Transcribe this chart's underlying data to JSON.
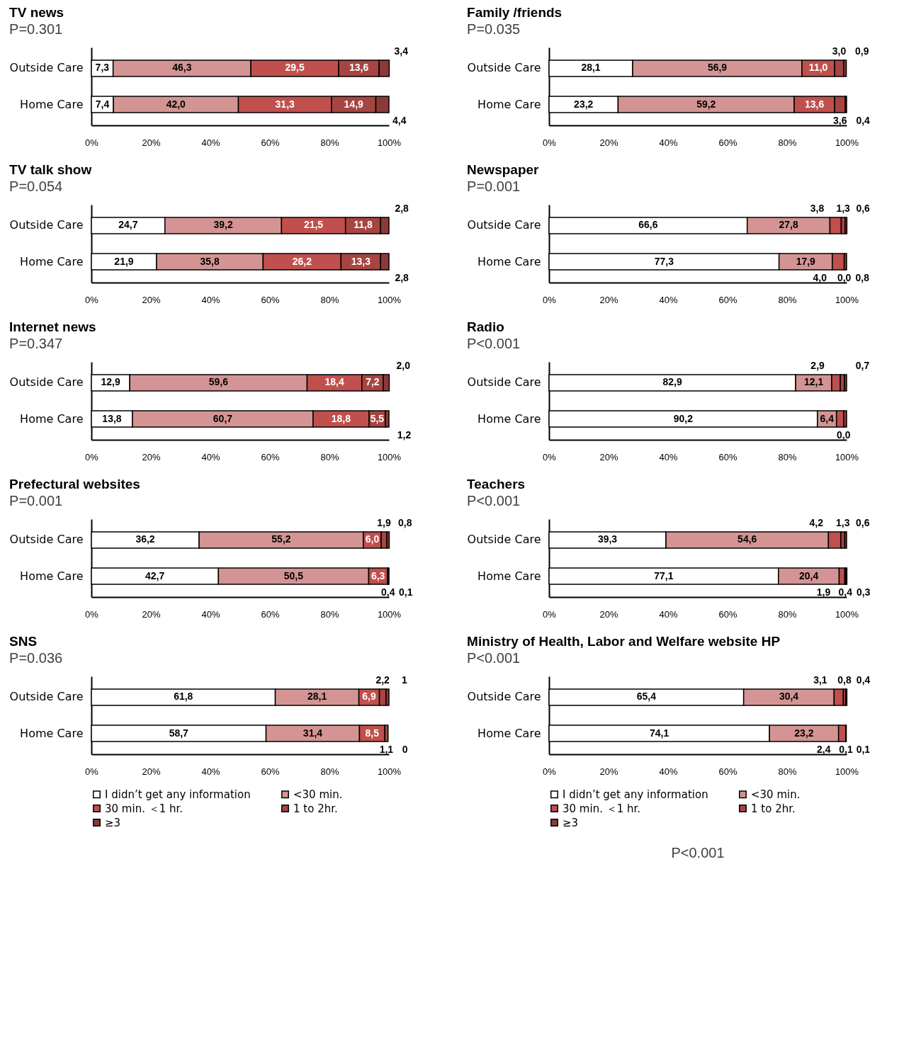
{
  "chart_data": [
    {
      "type": "bar",
      "orientation": "horizontal",
      "stacked": true,
      "title": "TV news",
      "subtitle": "P=0.301",
      "categories": [
        "Outside Care",
        "Home Care"
      ],
      "xlim": [
        0,
        100
      ],
      "xticks": [
        {
          "value": 0,
          "label": "0%"
        },
        {
          "value": 20,
          "label": "20%"
        },
        {
          "value": 40,
          "label": "40%"
        },
        {
          "value": 60,
          "label": "60%"
        },
        {
          "value": 80,
          "label": "80%"
        },
        {
          "value": 100,
          "label": "100%"
        }
      ],
      "series": [
        {
          "color": "#ffffff",
          "values": [
            7.3,
            7.4
          ],
          "value_labels": [
            "7,3",
            "7,4"
          ]
        },
        {
          "color": "#d49494",
          "values": [
            46.3,
            42.0
          ],
          "value_labels": [
            "46,3",
            "42,0"
          ]
        },
        {
          "color": "#c0504d",
          "values": [
            29.5,
            31.3
          ],
          "value_labels": [
            "29,5",
            "31,3"
          ]
        },
        {
          "color": "#a64541",
          "values": [
            13.6,
            14.9
          ],
          "value_labels": [
            "13,6",
            "14,9"
          ]
        },
        {
          "color": "#8b3a38",
          "values": [
            3.4,
            4.4
          ],
          "value_labels": [
            "3,4",
            "4,4"
          ]
        }
      ]
    },
    {
      "type": "bar",
      "orientation": "horizontal",
      "stacked": true,
      "title": "Family /friends",
      "subtitle": "P=0.035",
      "categories": [
        "Outside Care",
        "Home Care"
      ],
      "xlim": [
        0,
        100
      ],
      "xticks": [
        {
          "value": 0,
          "label": "0%"
        },
        {
          "value": 20,
          "label": "20%"
        },
        {
          "value": 40,
          "label": "40%"
        },
        {
          "value": 60,
          "label": "60%"
        },
        {
          "value": 80,
          "label": "80%"
        },
        {
          "value": 100,
          "label": "100%"
        }
      ],
      "series": [
        {
          "color": "#ffffff",
          "values": [
            28.1,
            23.2
          ],
          "value_labels": [
            "28,1",
            "23,2"
          ]
        },
        {
          "color": "#d49494",
          "values": [
            56.9,
            59.2
          ],
          "value_labels": [
            "56,9",
            "59,2"
          ]
        },
        {
          "color": "#c0504d",
          "values": [
            11.0,
            13.6
          ],
          "value_labels": [
            "11,0",
            "13,6"
          ]
        },
        {
          "color": "#a64541",
          "values": [
            3.0,
            3.6
          ],
          "value_labels": [
            "3,0",
            "3,6"
          ]
        },
        {
          "color": "#8b3a38",
          "values": [
            0.9,
            0.4
          ],
          "value_labels": [
            "0,9",
            "0,4"
          ]
        }
      ]
    },
    {
      "type": "bar",
      "orientation": "horizontal",
      "stacked": true,
      "title": "TV talk show",
      "subtitle": "P=0.054",
      "categories": [
        "Outside Care",
        "Home Care"
      ],
      "xlim": [
        0,
        100
      ],
      "xticks": [
        {
          "value": 0,
          "label": "0%"
        },
        {
          "value": 20,
          "label": "20%"
        },
        {
          "value": 40,
          "label": "40%"
        },
        {
          "value": 60,
          "label": "60%"
        },
        {
          "value": 80,
          "label": "80%"
        },
        {
          "value": 100,
          "label": "100%"
        }
      ],
      "series": [
        {
          "color": "#ffffff",
          "values": [
            24.7,
            21.9
          ],
          "value_labels": [
            "24,7",
            "21,9"
          ]
        },
        {
          "color": "#d49494",
          "values": [
            39.2,
            35.8
          ],
          "value_labels": [
            "39,2",
            "35,8"
          ]
        },
        {
          "color": "#c0504d",
          "values": [
            21.5,
            26.2
          ],
          "value_labels": [
            "21,5",
            "26,2"
          ]
        },
        {
          "color": "#a64541",
          "values": [
            11.8,
            13.3
          ],
          "value_labels": [
            "11,8",
            "13,3"
          ]
        },
        {
          "color": "#8b3a38",
          "values": [
            2.8,
            2.8
          ],
          "value_labels": [
            "2,8",
            "2,8"
          ]
        }
      ]
    },
    {
      "type": "bar",
      "orientation": "horizontal",
      "stacked": true,
      "title": "Newspaper",
      "subtitle": "P=0.001",
      "categories": [
        "Outside Care",
        "Home Care"
      ],
      "xlim": [
        0,
        100
      ],
      "xticks": [
        {
          "value": 0,
          "label": "0%"
        },
        {
          "value": 20,
          "label": "20%"
        },
        {
          "value": 40,
          "label": "40%"
        },
        {
          "value": 60,
          "label": "60%"
        },
        {
          "value": 80,
          "label": "80%"
        },
        {
          "value": 100,
          "label": "100%"
        }
      ],
      "series": [
        {
          "color": "#ffffff",
          "values": [
            66.6,
            77.3
          ],
          "value_labels": [
            "66,6",
            "77,3"
          ]
        },
        {
          "color": "#d49494",
          "values": [
            27.8,
            17.9
          ],
          "value_labels": [
            "27,8",
            "17,9"
          ]
        },
        {
          "color": "#c0504d",
          "values": [
            3.8,
            4.0
          ],
          "value_labels": [
            "3,8",
            "4,0"
          ]
        },
        {
          "color": "#a64541",
          "values": [
            1.3,
            0.0
          ],
          "value_labels": [
            "1,3",
            "0,0"
          ]
        },
        {
          "color": "#8b3a38",
          "values": [
            0.6,
            0.8
          ],
          "value_labels": [
            "0,6",
            "0,8"
          ]
        }
      ]
    },
    {
      "type": "bar",
      "orientation": "horizontal",
      "stacked": true,
      "title": "Internet news",
      "subtitle": "P=0.347",
      "categories": [
        "Outside Care",
        "Home Care"
      ],
      "xlim": [
        0,
        100
      ],
      "xticks": [
        {
          "value": 0,
          "label": "0%"
        },
        {
          "value": 20,
          "label": "20%"
        },
        {
          "value": 40,
          "label": "40%"
        },
        {
          "value": 60,
          "label": "60%"
        },
        {
          "value": 80,
          "label": "80%"
        },
        {
          "value": 100,
          "label": "100%"
        }
      ],
      "series": [
        {
          "color": "#ffffff",
          "values": [
            12.9,
            13.8
          ],
          "value_labels": [
            "12,9",
            "13,8"
          ]
        },
        {
          "color": "#d49494",
          "values": [
            59.6,
            60.7
          ],
          "value_labels": [
            "59,6",
            "60,7"
          ]
        },
        {
          "color": "#c0504d",
          "values": [
            18.4,
            18.8
          ],
          "value_labels": [
            "18,4",
            "18,8"
          ]
        },
        {
          "color": "#a64541",
          "values": [
            7.2,
            5.5
          ],
          "value_labels": [
            "7,2",
            "5,5"
          ]
        },
        {
          "color": "#8b3a38",
          "values": [
            2.0,
            1.2
          ],
          "value_labels": [
            "2,0",
            "1,2"
          ]
        }
      ]
    },
    {
      "type": "bar",
      "orientation": "horizontal",
      "stacked": true,
      "title": "Radio",
      "subtitle": "P<0.001",
      "categories": [
        "Outside Care",
        "Home Care"
      ],
      "xlim": [
        0,
        100
      ],
      "xticks": [
        {
          "value": 0,
          "label": "0%"
        },
        {
          "value": 20,
          "label": "20%"
        },
        {
          "value": 40,
          "label": "40%"
        },
        {
          "value": 60,
          "label": "60%"
        },
        {
          "value": 80,
          "label": "80%"
        },
        {
          "value": 100,
          "label": "100%"
        }
      ],
      "series": [
        {
          "color": "#ffffff",
          "values": [
            82.9,
            90.2
          ],
          "value_labels": [
            "82,9",
            "90,2"
          ]
        },
        {
          "color": "#d49494",
          "values": [
            12.1,
            6.4
          ],
          "value_labels": [
            "12,1",
            "6,4"
          ]
        },
        {
          "color": "#c0504d",
          "values": [
            2.9,
            2.4
          ],
          "value_labels": [
            "2,9",
            null
          ]
        },
        {
          "color": "#a64541",
          "values": [
            1.4,
            0.0
          ],
          "value_labels": [
            null,
            "0,0"
          ]
        },
        {
          "color": "#8b3a38",
          "values": [
            0.7,
            1.0
          ],
          "value_labels": [
            "0,7",
            null
          ]
        }
      ]
    },
    {
      "type": "bar",
      "orientation": "horizontal",
      "stacked": true,
      "title": "Prefectural websites",
      "subtitle": "P=0.001",
      "categories": [
        "Outside Care",
        "Home Care"
      ],
      "xlim": [
        0,
        100
      ],
      "xticks": [
        {
          "value": 0,
          "label": "0%"
        },
        {
          "value": 20,
          "label": "20%"
        },
        {
          "value": 40,
          "label": "40%"
        },
        {
          "value": 60,
          "label": "60%"
        },
        {
          "value": 80,
          "label": "80%"
        },
        {
          "value": 100,
          "label": "100%"
        }
      ],
      "series": [
        {
          "color": "#ffffff",
          "values": [
            36.2,
            42.7
          ],
          "value_labels": [
            "36,2",
            "42,7"
          ]
        },
        {
          "color": "#d49494",
          "values": [
            55.2,
            50.5
          ],
          "value_labels": [
            "55,2",
            "50,5"
          ]
        },
        {
          "color": "#c0504d",
          "values": [
            6.0,
            6.3
          ],
          "value_labels": [
            "6,0",
            "6,3"
          ]
        },
        {
          "color": "#a64541",
          "values": [
            1.9,
            0.4
          ],
          "value_labels": [
            "1,9",
            "0,4"
          ]
        },
        {
          "color": "#8b3a38",
          "values": [
            0.8,
            0.1
          ],
          "value_labels": [
            "0,8",
            "0,1"
          ]
        }
      ]
    },
    {
      "type": "bar",
      "orientation": "horizontal",
      "stacked": true,
      "title": "Teachers",
      "subtitle": "P<0.001",
      "categories": [
        "Outside Care",
        "Home Care"
      ],
      "xlim": [
        0,
        100
      ],
      "xticks": [
        {
          "value": 0,
          "label": "0%"
        },
        {
          "value": 20,
          "label": "20%"
        },
        {
          "value": 40,
          "label": "40%"
        },
        {
          "value": 60,
          "label": "60%"
        },
        {
          "value": 80,
          "label": "80%"
        },
        {
          "value": 100,
          "label": "100%"
        }
      ],
      "series": [
        {
          "color": "#ffffff",
          "values": [
            39.3,
            77.1
          ],
          "value_labels": [
            "39,3",
            "77,1"
          ]
        },
        {
          "color": "#d49494",
          "values": [
            54.6,
            20.4
          ],
          "value_labels": [
            "54,6",
            "20,4"
          ]
        },
        {
          "color": "#c0504d",
          "values": [
            4.2,
            1.9
          ],
          "value_labels": [
            "4,2",
            "1,9"
          ]
        },
        {
          "color": "#a64541",
          "values": [
            1.3,
            0.4
          ],
          "value_labels": [
            "1,3",
            "0,4"
          ]
        },
        {
          "color": "#8b3a38",
          "values": [
            0.6,
            0.3
          ],
          "value_labels": [
            "0,6",
            "0,3"
          ]
        }
      ]
    },
    {
      "type": "bar",
      "orientation": "horizontal",
      "stacked": true,
      "title": "SNS",
      "subtitle": "P=0.036",
      "categories": [
        "Outside Care",
        "Home Care"
      ],
      "xlim": [
        0,
        100
      ],
      "xticks": [
        {
          "value": 0,
          "label": "0%"
        },
        {
          "value": 20,
          "label": "20%"
        },
        {
          "value": 40,
          "label": "40%"
        },
        {
          "value": 60,
          "label": "60%"
        },
        {
          "value": 80,
          "label": "80%"
        },
        {
          "value": 100,
          "label": "100%"
        }
      ],
      "legend": "bottom",
      "series": [
        {
          "name": "I didn’t get any information",
          "color": "#ffffff",
          "values": [
            61.8,
            58.7
          ],
          "value_labels": [
            "61,8",
            "58,7"
          ]
        },
        {
          "name": "<30 min.",
          "color": "#d49494",
          "values": [
            28.1,
            31.4
          ],
          "value_labels": [
            "28,1",
            "31,4"
          ]
        },
        {
          "name": "30 min. ＜1 hr.",
          "color": "#c0504d",
          "values": [
            6.9,
            8.5
          ],
          "value_labels": [
            "6,9",
            "8,5"
          ]
        },
        {
          "name": "1 to 2hr.",
          "color": "#a64541",
          "values": [
            2.2,
            1.1
          ],
          "value_labels": [
            "2,2",
            "1,1"
          ]
        },
        {
          "name": "≥3",
          "color": "#8b3a38",
          "values": [
            1,
            0
          ],
          "value_labels": [
            "1",
            "0"
          ]
        }
      ]
    },
    {
      "type": "bar",
      "orientation": "horizontal",
      "stacked": true,
      "title": "Ministry of Health, Labor and Welfare website HP",
      "subtitle": "P<0.001",
      "categories": [
        "Outside Care",
        "Home Care"
      ],
      "xlim": [
        0,
        100
      ],
      "xticks": [
        {
          "value": 0,
          "label": "0%"
        },
        {
          "value": 20,
          "label": "20%"
        },
        {
          "value": 40,
          "label": "40%"
        },
        {
          "value": 60,
          "label": "60%"
        },
        {
          "value": 80,
          "label": "80%"
        },
        {
          "value": 100,
          "label": "100%"
        }
      ],
      "legend": "bottom",
      "annotations": [
        "P<0.001"
      ],
      "series": [
        {
          "name": "I didn’t get any information",
          "color": "#ffffff",
          "values": [
            65.4,
            74.1
          ],
          "value_labels": [
            "65,4",
            "74,1"
          ]
        },
        {
          "name": "<30 min.",
          "color": "#d49494",
          "values": [
            30.4,
            23.2
          ],
          "value_labels": [
            "30,4",
            "23,2"
          ]
        },
        {
          "name": "30 min. ＜1 hr.",
          "color": "#c0504d",
          "values": [
            3.1,
            2.4
          ],
          "value_labels": [
            "3,1",
            "2,4"
          ]
        },
        {
          "name": "1 to 2hr.",
          "color": "#a64541",
          "values": [
            0.8,
            0.1
          ],
          "value_labels": [
            "0,8",
            "0,1"
          ]
        },
        {
          "name": "≥3",
          "color": "#8b3a38",
          "values": [
            0.4,
            0.1
          ],
          "value_labels": [
            "0,4",
            "0,1"
          ]
        }
      ]
    }
  ]
}
